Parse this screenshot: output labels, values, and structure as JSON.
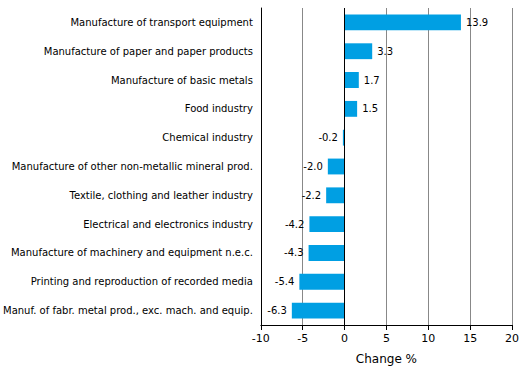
{
  "chart_data": {
    "type": "bar",
    "orientation": "horizontal",
    "xlabel": "Change %",
    "categories": [
      "Manufacture of transport equipment",
      "Manufacture of paper and paper products",
      "Manufacture of basic metals",
      "Food industry",
      "Chemical industry",
      "Manufacture of other non-metallic mineral prod.",
      "Textile, clothing and leather industry",
      "Electrical and electronics industry",
      "Manufacture of machinery and equipment n.e.c.",
      "Printing and reproduction of recorded media",
      "Manuf. of fabr. metal prod., exc. mach. and equip."
    ],
    "values": [
      13.9,
      3.3,
      1.7,
      1.5,
      -0.2,
      -2.0,
      -2.2,
      -4.2,
      -4.3,
      -5.4,
      -6.3
    ],
    "value_labels": [
      "13.9",
      "3.3",
      "1.7",
      "1.5",
      "-0.2",
      "-2.0",
      "-2.2",
      "-4.2",
      "-4.3",
      "-5.4",
      "-6.3"
    ],
    "color": "#009fe3",
    "xlim": [
      -10,
      20
    ],
    "xticks": [
      -10,
      -5,
      0,
      5,
      10,
      15,
      20
    ],
    "grid": true,
    "data_labels": true
  }
}
